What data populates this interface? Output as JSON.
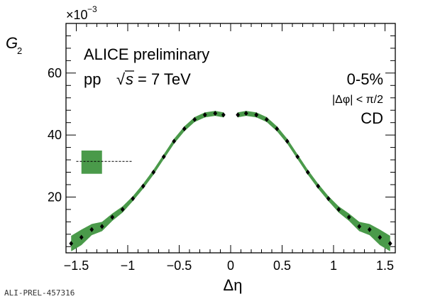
{
  "chart_data": {
    "type": "scatter",
    "title": "",
    "xlabel": "Δη",
    "ylabel": "G",
    "ylabel_subscript": "2",
    "y_multiplier_label": "×10",
    "y_multiplier_exponent": "−3",
    "xlim": [
      -1.6,
      1.6
    ],
    "ylim": [
      2,
      76
    ],
    "x_ticks": [
      {
        "value": -1.5,
        "label": "−1.5"
      },
      {
        "value": -1.0,
        "label": "−1"
      },
      {
        "value": -0.5,
        "label": "−0.5"
      },
      {
        "value": 0.0,
        "label": "0"
      },
      {
        "value": 0.5,
        "label": "0.5"
      },
      {
        "value": 1.0,
        "label": "1"
      },
      {
        "value": 1.5,
        "label": "1.5"
      }
    ],
    "y_ticks": [
      {
        "value": 20,
        "label": "20"
      },
      {
        "value": 40,
        "label": "40"
      },
      {
        "value": 60,
        "label": "60"
      }
    ],
    "annotations": {
      "experiment": "ALICE preliminary",
      "system_prefix": "pp",
      "sqrt_symbol": "√",
      "sqrt_var": "s",
      "system_suffix": "= 7 TeV",
      "centrality": "0-5%",
      "dphi_cut": "|Δφ| < π/2",
      "label_cd": "CD"
    },
    "legend_placement": "left",
    "series": [
      {
        "color": "#4a9a4a",
        "marker_color": "#000000",
        "points": [
          {
            "x": -1.55,
            "y": 5.0,
            "err": 2.5
          },
          {
            "x": -1.45,
            "y": 7.0,
            "err": 2.5
          },
          {
            "x": -1.35,
            "y": 9.5,
            "err": 1.8
          },
          {
            "x": -1.25,
            "y": 10.5,
            "err": 1.5
          },
          {
            "x": -1.15,
            "y": 13.5,
            "err": 1.2
          },
          {
            "x": -1.05,
            "y": 16.0,
            "err": 1.0
          },
          {
            "x": -0.95,
            "y": 19.5,
            "err": 0.8
          },
          {
            "x": -0.85,
            "y": 23.5,
            "err": 0.8
          },
          {
            "x": -0.75,
            "y": 28.0,
            "err": 0.8
          },
          {
            "x": -0.65,
            "y": 33.0,
            "err": 0.8
          },
          {
            "x": -0.55,
            "y": 38.0,
            "err": 0.8
          },
          {
            "x": -0.45,
            "y": 42.0,
            "err": 0.8
          },
          {
            "x": -0.35,
            "y": 45.0,
            "err": 0.8
          },
          {
            "x": -0.25,
            "y": 46.5,
            "err": 0.8
          },
          {
            "x": -0.15,
            "y": 47.0,
            "err": 0.8
          },
          {
            "x": -0.07,
            "y": 46.5,
            "err": 0.8
          },
          {
            "x": 0.07,
            "y": 46.5,
            "err": 0.8
          },
          {
            "x": 0.15,
            "y": 47.0,
            "err": 0.8
          },
          {
            "x": 0.25,
            "y": 46.5,
            "err": 0.8
          },
          {
            "x": 0.35,
            "y": 45.0,
            "err": 0.8
          },
          {
            "x": 0.45,
            "y": 42.0,
            "err": 0.8
          },
          {
            "x": 0.55,
            "y": 38.0,
            "err": 0.8
          },
          {
            "x": 0.65,
            "y": 33.0,
            "err": 0.8
          },
          {
            "x": 0.75,
            "y": 28.0,
            "err": 0.8
          },
          {
            "x": 0.85,
            "y": 23.5,
            "err": 0.8
          },
          {
            "x": 0.95,
            "y": 19.5,
            "err": 0.8
          },
          {
            "x": 1.05,
            "y": 16.0,
            "err": 1.0
          },
          {
            "x": 1.15,
            "y": 13.5,
            "err": 1.2
          },
          {
            "x": 1.25,
            "y": 10.5,
            "err": 1.5
          },
          {
            "x": 1.35,
            "y": 9.5,
            "err": 1.8
          },
          {
            "x": 1.45,
            "y": 7.0,
            "err": 2.5
          },
          {
            "x": 1.55,
            "y": 5.0,
            "err": 2.5
          }
        ]
      }
    ],
    "dashed_reference": {
      "x_from": -1.5,
      "x_to": -0.95,
      "y": 31.5
    },
    "systematic_box": {
      "x_from": -1.45,
      "x_to": -1.25,
      "y_from": 27.5,
      "y_to": 35.0,
      "color": "#4a9a4a"
    }
  },
  "credit": "ALI-PREL-457316"
}
